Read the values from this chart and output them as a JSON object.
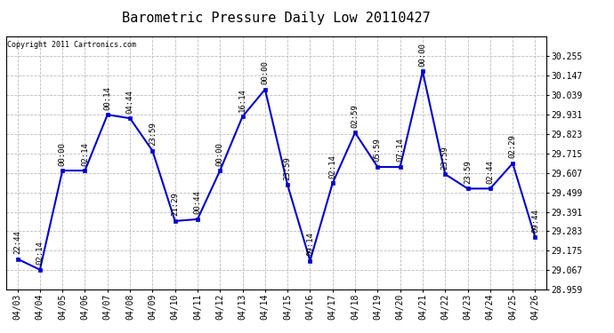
{
  "title": "Barometric Pressure Daily Low 20110427",
  "copyright": "Copyright 2011 Cartronics.com",
  "x_labels": [
    "04/03",
    "04/04",
    "04/05",
    "04/06",
    "04/07",
    "04/08",
    "04/09",
    "04/10",
    "04/11",
    "04/12",
    "04/13",
    "04/14",
    "04/15",
    "04/16",
    "04/17",
    "04/18",
    "04/19",
    "04/20",
    "04/21",
    "04/22",
    "04/23",
    "04/24",
    "04/25",
    "04/26"
  ],
  "y_values": [
    29.13,
    29.07,
    29.62,
    29.62,
    29.93,
    29.91,
    29.73,
    29.34,
    29.35,
    29.62,
    29.92,
    30.07,
    29.54,
    29.12,
    29.55,
    29.83,
    29.64,
    29.64,
    30.17,
    29.6,
    29.52,
    29.52,
    29.66,
    29.25
  ],
  "time_labels": [
    "22:44",
    "02:14",
    "00:00",
    "02:14",
    "00:14",
    "04:44",
    "23:59",
    "21:29",
    "00:44",
    "00:00",
    "16:14",
    "00:00",
    "23:59",
    "09:14",
    "02:14",
    "02:59",
    "05:59",
    "07:14",
    "00:00",
    "23:59",
    "23:59",
    "02:44",
    "02:29",
    "09:44"
  ],
  "ylim_min": 28.959,
  "ylim_max": 30.363,
  "yticks": [
    28.959,
    29.067,
    29.175,
    29.283,
    29.391,
    29.499,
    29.607,
    29.715,
    29.823,
    29.931,
    30.039,
    30.147,
    30.255
  ],
  "line_color": "#0000cc",
  "marker_color": "#0000cc",
  "bg_color": "#ffffff",
  "grid_color": "#bbbbbb",
  "title_fontsize": 11,
  "tick_fontsize": 7,
  "annot_fontsize": 6.5
}
